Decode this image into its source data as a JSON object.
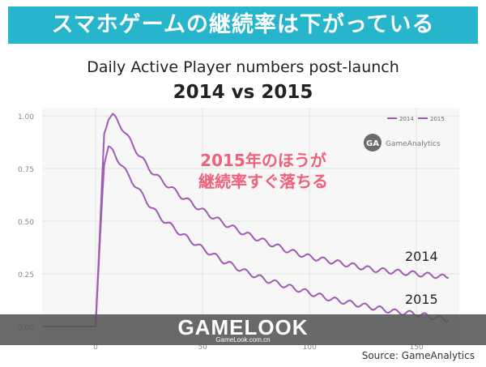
{
  "banner": "スマホゲームの継続率は下がっている",
  "callout": [
    "2015年のほうが",
    "継続率すぐ落ちる"
  ],
  "watermark": {
    "logo": "GAMELOOK",
    "url": "GameLook.com.cn"
  },
  "source": "Source: GameAnalytics",
  "gameanalytics": {
    "icon": "GA",
    "name": "GameAnalytics"
  },
  "colors": {
    "banner": "#27b5cc",
    "line": "#a05bb4",
    "callout": "#f0607a",
    "watermark": "#555555"
  },
  "chart_data": {
    "type": "line",
    "title": "Daily Active Player numbers post-launch",
    "subtitle": "2014 vs 2015",
    "ylim": [
      0,
      1
    ],
    "xlim": [
      -25,
      170
    ],
    "y_ticks": [
      "0.00",
      "0.25",
      "0.50",
      "0.75",
      "1.00"
    ],
    "x_ticks": [
      "0",
      "50",
      "100",
      "150"
    ],
    "grid": true,
    "legend_position": "top-right",
    "series": [
      {
        "name": "2014",
        "x": [
          -25,
          0,
          2,
          4,
          6,
          8,
          10,
          12,
          15,
          20,
          25,
          30,
          40,
          50,
          60,
          70,
          80,
          90,
          100,
          110,
          120,
          130,
          140,
          150,
          160,
          165
        ],
        "y": [
          0,
          0,
          0.45,
          0.92,
          0.99,
          1.0,
          0.98,
          0.95,
          0.9,
          0.82,
          0.75,
          0.7,
          0.62,
          0.55,
          0.49,
          0.44,
          0.4,
          0.36,
          0.33,
          0.31,
          0.29,
          0.27,
          0.26,
          0.25,
          0.24,
          0.23
        ]
      },
      {
        "name": "2015",
        "x": [
          -25,
          0,
          2,
          4,
          6,
          8,
          10,
          12,
          15,
          20,
          25,
          30,
          40,
          50,
          60,
          70,
          80,
          90,
          100,
          110,
          120,
          130,
          140,
          150,
          160,
          165
        ],
        "y": [
          0,
          0,
          0.4,
          0.78,
          0.85,
          0.83,
          0.8,
          0.77,
          0.72,
          0.65,
          0.58,
          0.52,
          0.44,
          0.37,
          0.31,
          0.26,
          0.22,
          0.19,
          0.16,
          0.13,
          0.11,
          0.09,
          0.07,
          0.06,
          0.04,
          0.03
        ]
      }
    ],
    "end_labels": [
      "2014",
      "2015"
    ]
  }
}
